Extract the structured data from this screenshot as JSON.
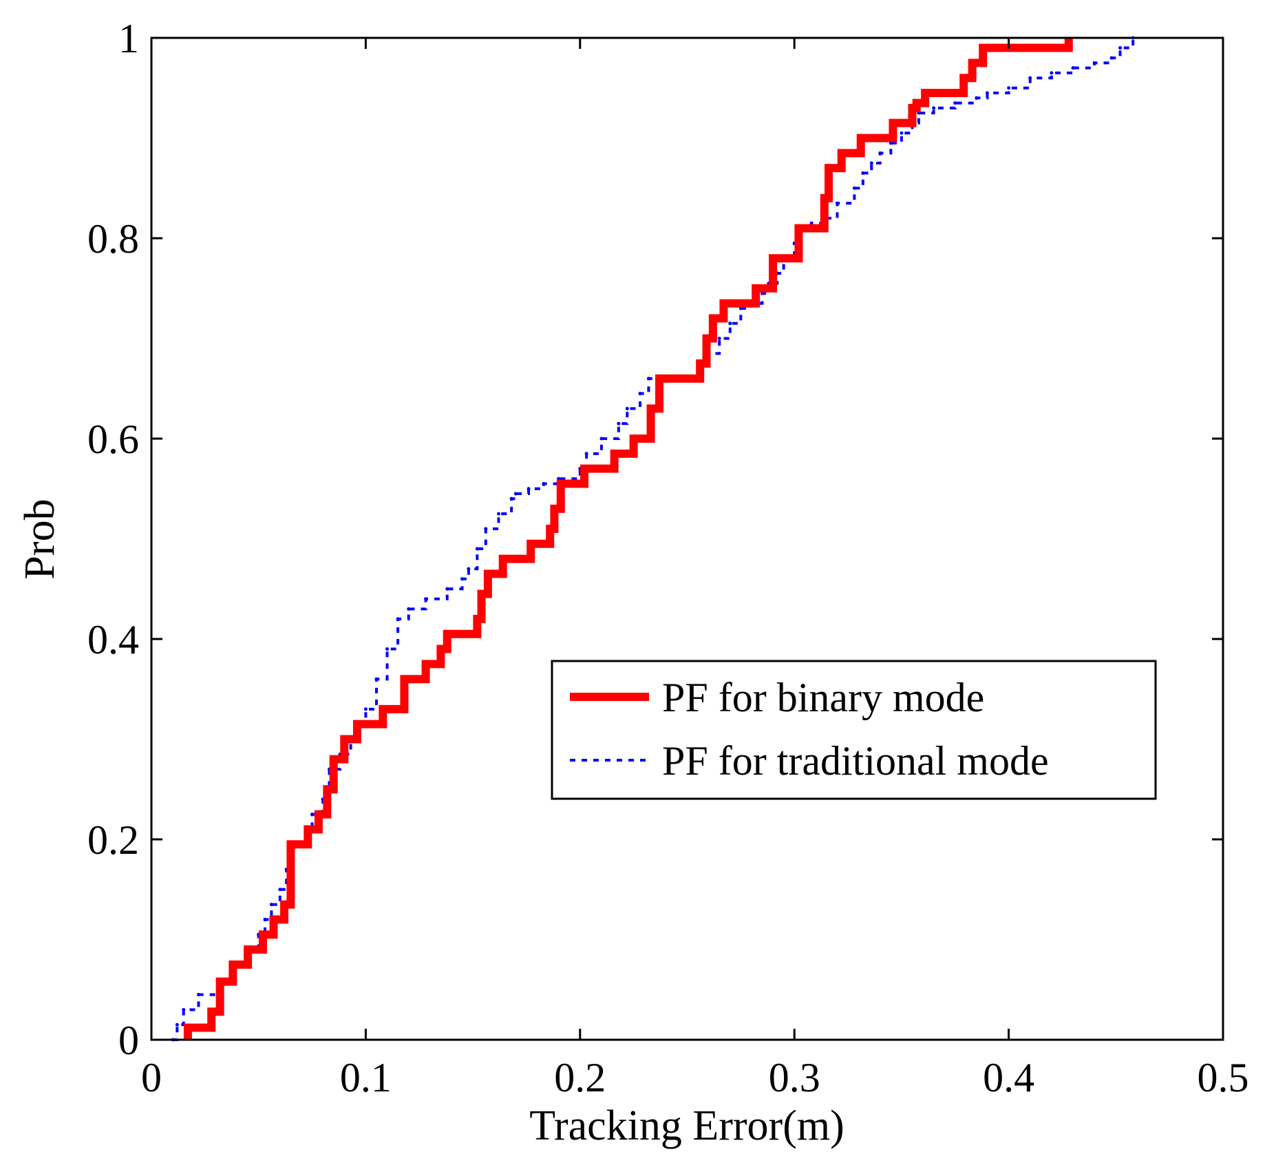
{
  "chart_data": {
    "type": "line",
    "title": "",
    "xlabel": "Tracking Error(m)",
    "ylabel": "Prob",
    "xlim": [
      0,
      0.5
    ],
    "ylim": [
      0,
      1
    ],
    "xticks": [
      0,
      0.1,
      0.2,
      0.3,
      0.4,
      0.5
    ],
    "yticks": [
      0,
      0.2,
      0.4,
      0.6,
      0.8,
      1
    ],
    "xtick_labels": [
      "0",
      "0.1",
      "0.2",
      "0.3",
      "0.4",
      "0.5"
    ],
    "ytick_labels": [
      "0",
      "0.2",
      "0.4",
      "0.6",
      "0.8",
      "1"
    ],
    "grid": false,
    "legend_position": "center-right",
    "series": [
      {
        "name": "PF for binary mode",
        "color": "#ff0000",
        "style": "solid-step",
        "x": [
          0.017,
          0.028,
          0.032,
          0.038,
          0.045,
          0.052,
          0.057,
          0.062,
          0.065,
          0.073,
          0.078,
          0.082,
          0.085,
          0.09,
          0.096,
          0.108,
          0.118,
          0.128,
          0.135,
          0.138,
          0.152,
          0.154,
          0.157,
          0.164,
          0.177,
          0.186,
          0.188,
          0.191,
          0.202,
          0.216,
          0.225,
          0.233,
          0.237,
          0.256,
          0.259,
          0.262,
          0.267,
          0.282,
          0.29,
          0.302,
          0.314,
          0.316,
          0.322,
          0.331,
          0.346,
          0.355,
          0.357,
          0.361,
          0.379,
          0.383,
          0.388,
          0.428
        ],
        "y": [
          0.012,
          0.028,
          0.058,
          0.075,
          0.09,
          0.105,
          0.12,
          0.135,
          0.195,
          0.21,
          0.225,
          0.25,
          0.28,
          0.3,
          0.315,
          0.33,
          0.36,
          0.375,
          0.39,
          0.405,
          0.42,
          0.445,
          0.465,
          0.48,
          0.495,
          0.51,
          0.53,
          0.555,
          0.57,
          0.585,
          0.6,
          0.63,
          0.66,
          0.675,
          0.7,
          0.72,
          0.735,
          0.75,
          0.78,
          0.81,
          0.84,
          0.87,
          0.885,
          0.9,
          0.915,
          0.93,
          0.935,
          0.945,
          0.96,
          0.975,
          0.99,
          1.0
        ]
      },
      {
        "name": "PF for traditional mode",
        "color": "#0000ff",
        "style": "dotted-step",
        "x": [
          0.01,
          0.012,
          0.015,
          0.022,
          0.033,
          0.037,
          0.045,
          0.05,
          0.053,
          0.056,
          0.06,
          0.063,
          0.065,
          0.072,
          0.075,
          0.08,
          0.083,
          0.088,
          0.093,
          0.096,
          0.1,
          0.105,
          0.11,
          0.115,
          0.12,
          0.128,
          0.138,
          0.145,
          0.148,
          0.152,
          0.156,
          0.162,
          0.168,
          0.17,
          0.176,
          0.183,
          0.19,
          0.2,
          0.203,
          0.21,
          0.218,
          0.222,
          0.228,
          0.232,
          0.25,
          0.255,
          0.26,
          0.265,
          0.27,
          0.275,
          0.28,
          0.285,
          0.288,
          0.292,
          0.295,
          0.3,
          0.303,
          0.308,
          0.313,
          0.32,
          0.328,
          0.332,
          0.336,
          0.34,
          0.345,
          0.35,
          0.355,
          0.358,
          0.365,
          0.375,
          0.385,
          0.39,
          0.4,
          0.41,
          0.42,
          0.43,
          0.44,
          0.448,
          0.452,
          0.458
        ],
        "y": [
          0.0,
          0.015,
          0.03,
          0.045,
          0.06,
          0.075,
          0.09,
          0.105,
          0.12,
          0.135,
          0.15,
          0.17,
          0.195,
          0.21,
          0.225,
          0.24,
          0.27,
          0.285,
          0.3,
          0.315,
          0.33,
          0.36,
          0.39,
          0.42,
          0.43,
          0.44,
          0.45,
          0.46,
          0.47,
          0.49,
          0.51,
          0.525,
          0.54,
          0.545,
          0.55,
          0.555,
          0.56,
          0.57,
          0.585,
          0.6,
          0.615,
          0.63,
          0.645,
          0.66,
          0.66,
          0.675,
          0.685,
          0.7,
          0.715,
          0.73,
          0.735,
          0.745,
          0.755,
          0.765,
          0.78,
          0.795,
          0.81,
          0.815,
          0.82,
          0.835,
          0.85,
          0.865,
          0.875,
          0.885,
          0.895,
          0.905,
          0.915,
          0.925,
          0.93,
          0.935,
          0.94,
          0.945,
          0.95,
          0.96,
          0.965,
          0.97,
          0.975,
          0.98,
          0.99,
          1.0
        ]
      }
    ]
  }
}
